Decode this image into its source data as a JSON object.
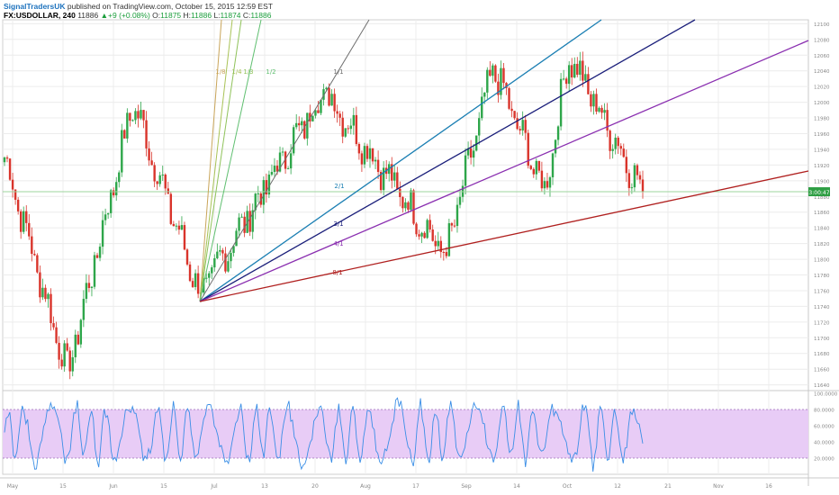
{
  "header": {
    "publisher": "SignalTradersUK",
    "published_text": "published on TradingView.com, October 15, 2015 12:59 EST",
    "symbol": "FX:USDOLLAR, 240",
    "last": "11886",
    "change_arrow": "▲",
    "change": "+9 (+0.08%)",
    "o_label": "O:",
    "o_value": "11875",
    "h_label": "H:",
    "h_value": "11886",
    "l_label": "L:",
    "l_value": "11874",
    "c_label": "C:",
    "c_value": "11886"
  },
  "colors": {
    "bull": "#2ea64a",
    "bear": "#d9342b",
    "stoch_line": "#3a8ee6",
    "stoch_band": "#e8ccf6",
    "grid": "#ececec",
    "hline": "#9ed49e",
    "price_label_bg": "#2e9e43"
  },
  "price_axis": {
    "ticks": [
      "12100",
      "12080",
      "12060",
      "12040",
      "12020",
      "12000",
      "11980",
      "11960",
      "11940",
      "11920",
      "11900",
      "11880",
      "11860",
      "11840",
      "11820",
      "11800",
      "11780",
      "11760",
      "11740",
      "11720",
      "11700",
      "11680",
      "11660",
      "11640"
    ],
    "current_label": "3:00:47"
  },
  "time_axis": {
    "ticks": [
      "May",
      "15",
      "Jun",
      "15",
      "Jul",
      "13",
      "20",
      "Aug",
      "17",
      "Sep",
      "14",
      "Oct",
      "12",
      "21",
      "Nov",
      "16"
    ]
  },
  "gann_fan": {
    "labels": [
      "1/8",
      "1/4",
      "1/3",
      "1/2",
      "1/1",
      "2/1",
      "3/1",
      "4/1",
      "8/1"
    ],
    "colors": [
      "#c9a55a",
      "#a8c256",
      "#8fc25a",
      "#5fbf70",
      "#707070",
      "#1b7fb3",
      "#1a1e7a",
      "#8a2fb0",
      "#b0201f"
    ]
  },
  "indicator": {
    "ticks": [
      "100.0000",
      "80.0000",
      "60.0000",
      "40.0000",
      "20.0000"
    ],
    "band_upper": 80,
    "band_lower": 20
  },
  "chart_data": {
    "type": "candlestick",
    "title": "",
    "xlabel": "",
    "ylabel": "",
    "ylim": [
      11635,
      12105
    ],
    "grid": true,
    "key_levels": [
      {
        "date": "Apr 27",
        "value": 11930
      },
      {
        "date": "May 13",
        "value": 11655
      },
      {
        "date": "Jun 3",
        "value": 12000
      },
      {
        "date": "Jun 25",
        "value": 11755
      },
      {
        "date": "Jul 20",
        "value": 12015
      },
      {
        "date": "Aug 24",
        "value": 11805
      },
      {
        "date": "Sep 4",
        "value": 12045
      },
      {
        "date": "Sep 18",
        "value": 11885
      },
      {
        "date": "Sep 25",
        "value": 12060
      },
      {
        "date": "Oct 15",
        "value": 11886
      }
    ],
    "stochastic": {
      "ylim": [
        0,
        100
      ],
      "upper_band": 80,
      "lower_band": 20
    }
  }
}
